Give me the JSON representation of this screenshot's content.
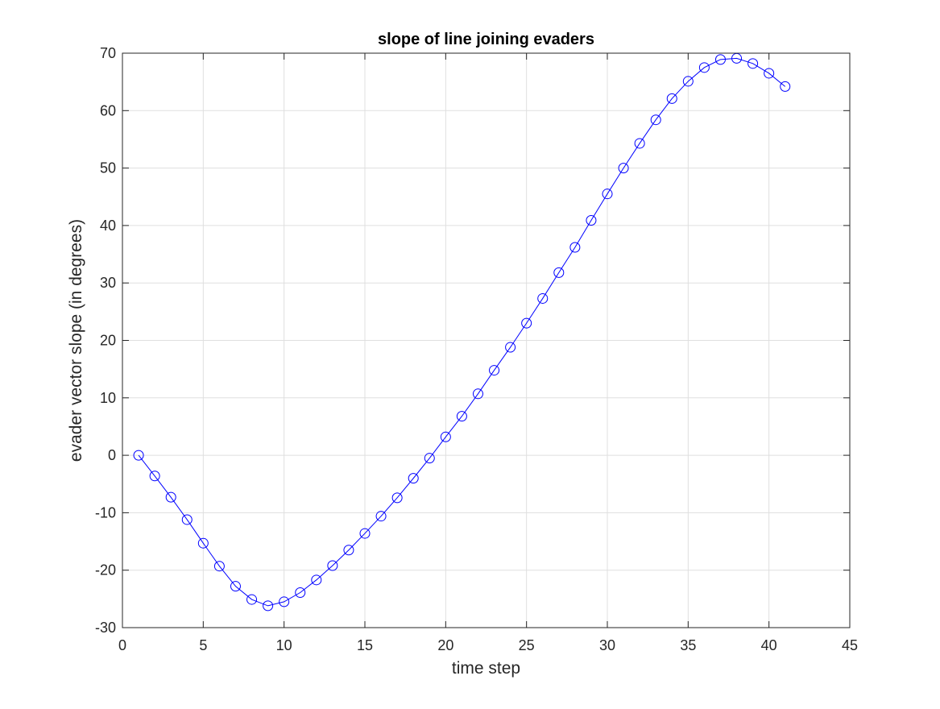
{
  "chart_data": {
    "type": "line",
    "title": "slope of line joining evaders",
    "xlabel": "time step",
    "ylabel": "evader vector slope (in degrees)",
    "xlim": [
      0,
      45
    ],
    "ylim": [
      -30,
      70
    ],
    "xticks": [
      0,
      5,
      10,
      15,
      20,
      25,
      30,
      35,
      40,
      45
    ],
    "yticks": [
      -30,
      -20,
      -10,
      0,
      10,
      20,
      30,
      40,
      50,
      60,
      70
    ],
    "grid": true,
    "series": [
      {
        "color": "#0000ff",
        "marker": "circle",
        "x": [
          1,
          2,
          3,
          4,
          5,
          6,
          7,
          8,
          9,
          10,
          11,
          12,
          13,
          14,
          15,
          16,
          17,
          18,
          19,
          20,
          21,
          22,
          23,
          24,
          25,
          26,
          27,
          28,
          29,
          30,
          31,
          32,
          33,
          34,
          35,
          36,
          37,
          38,
          39,
          40,
          41
        ],
        "y": [
          0,
          -3.6,
          -7.3,
          -11.2,
          -15.3,
          -19.3,
          -22.8,
          -25.1,
          -26.2,
          -25.5,
          -23.9,
          -21.7,
          -19.2,
          -16.5,
          -13.6,
          -10.6,
          -7.4,
          -4.0,
          -0.5,
          3.2,
          6.8,
          10.7,
          14.8,
          18.8,
          23.0,
          27.3,
          31.8,
          36.2,
          40.9,
          45.5,
          50.0,
          54.3,
          58.4,
          62.1,
          65.1,
          67.5,
          68.9,
          69.1,
          68.2,
          66.5,
          64.2
        ]
      }
    ]
  }
}
